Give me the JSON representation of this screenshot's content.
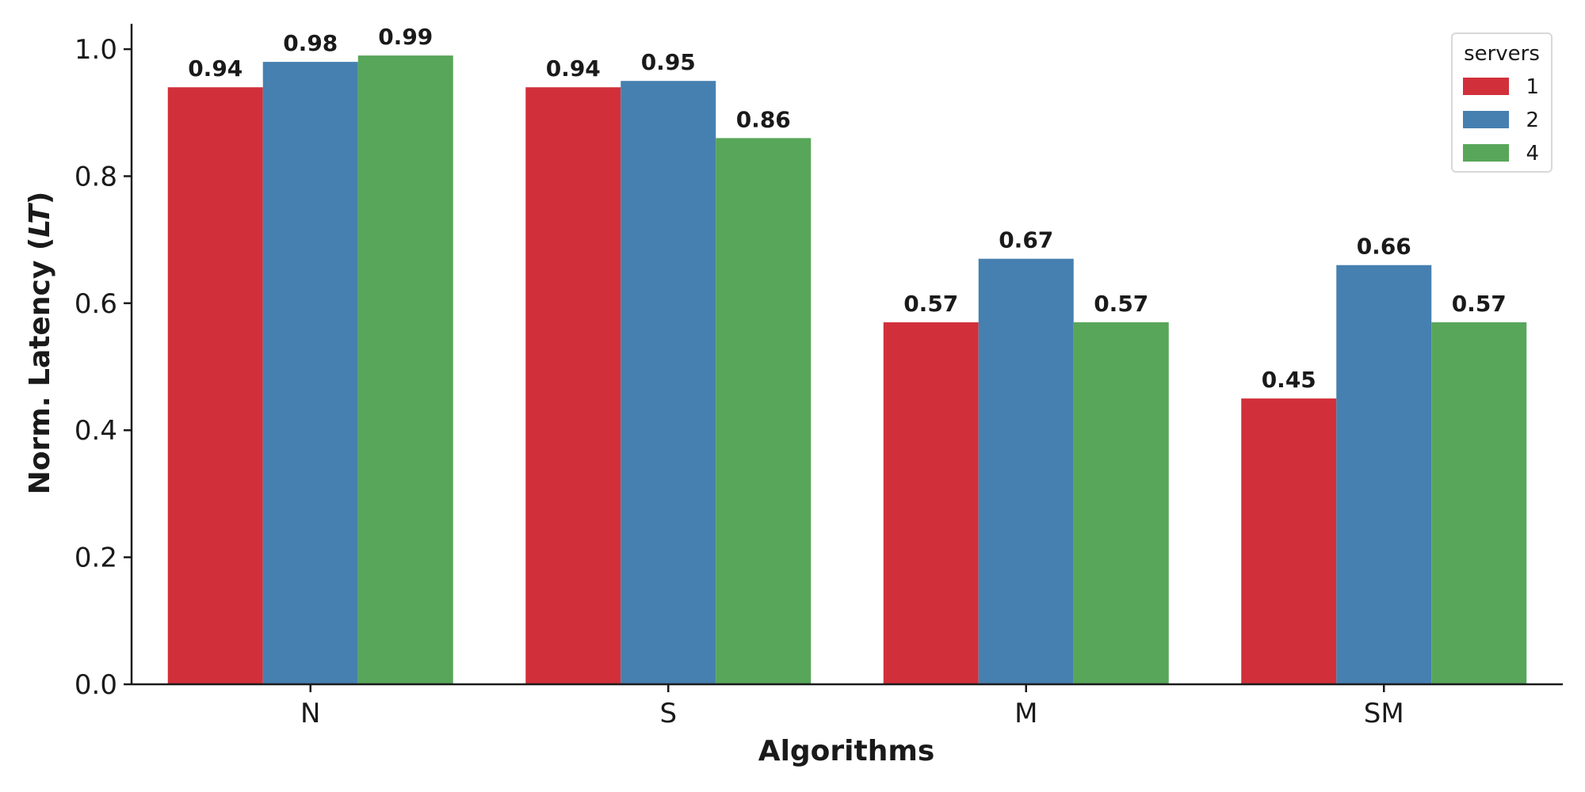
{
  "chart_data": {
    "type": "bar",
    "title": "",
    "xlabel": "Algorithms",
    "ylabel_main": "Norm. Latency (",
    "ylabel_italic": "LT",
    "ylabel_end": ")",
    "categories": [
      "N",
      "S",
      "M",
      "SM"
    ],
    "series": [
      {
        "name": "1",
        "color": "#d1303a",
        "values": [
          0.94,
          0.94,
          0.57,
          0.45
        ],
        "labels": [
          "0.94",
          "0.94",
          "0.57",
          "0.45"
        ]
      },
      {
        "name": "2",
        "color": "#4680b0",
        "values": [
          0.98,
          0.95,
          0.67,
          0.66
        ],
        "labels": [
          "0.98",
          "0.95",
          "0.67",
          "0.66"
        ]
      },
      {
        "name": "4",
        "color": "#58a65a",
        "values": [
          0.99,
          0.86,
          0.57,
          0.57
        ],
        "labels": [
          "0.99",
          "0.86",
          "0.57",
          "0.57"
        ]
      }
    ],
    "ylim": [
      0,
      1.04
    ],
    "yticks": [
      "0.0",
      "0.2",
      "0.4",
      "0.6",
      "0.8",
      "1.0"
    ],
    "legend": {
      "title": "servers",
      "placement": "top-right"
    },
    "grid": false
  }
}
